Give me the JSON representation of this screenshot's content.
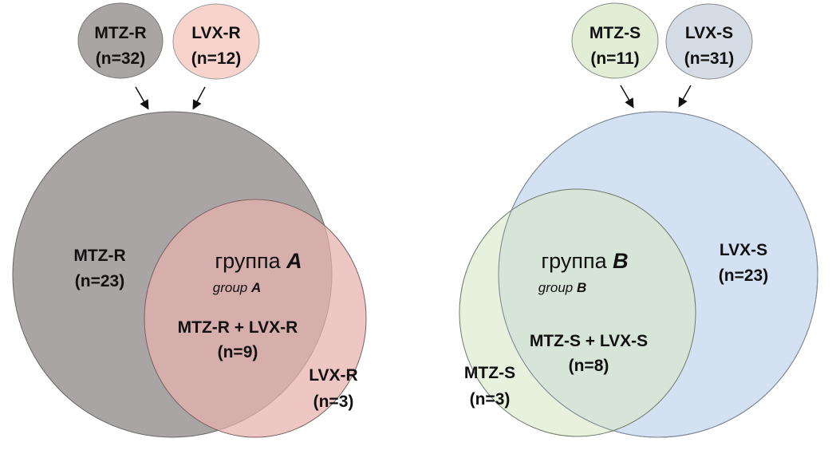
{
  "colors": {
    "mtz_r": "#a9a5a4",
    "lvx_r": "#f8d3cc",
    "mtz_s": "#e2edd6",
    "lvx_s": "#d6dce6",
    "group_b_big": "#d3e1f3"
  },
  "left": {
    "sources": [
      {
        "label": "MTZ-R",
        "count": "(n=32)"
      },
      {
        "label": "LVX-R",
        "count": "(n=12)"
      }
    ],
    "group_title": "группа",
    "group_letter": "A",
    "group_subtitle": "group",
    "group_sub_letter": "A",
    "regions": {
      "only_mtz": {
        "label": "MTZ-R",
        "count": "(n=23)"
      },
      "both": {
        "label": "MTZ-R + LVX-R",
        "count": "(n=9)"
      },
      "only_lvx": {
        "label": "LVX-R",
        "count": "(n=3)"
      }
    }
  },
  "right": {
    "sources": [
      {
        "label": "MTZ-S",
        "count": "(n=11)"
      },
      {
        "label": "LVX-S",
        "count": "(n=31)"
      }
    ],
    "group_title": "группа",
    "group_letter": "B",
    "group_subtitle": "group",
    "group_sub_letter": "B",
    "regions": {
      "only_lvx": {
        "label": "LVX-S",
        "count": "(n=23)"
      },
      "both": {
        "label": "MTZ-S + LVX-S",
        "count": "(n=8)"
      },
      "only_mtz": {
        "label": "MTZ-S",
        "count": "(n=3)"
      }
    }
  }
}
